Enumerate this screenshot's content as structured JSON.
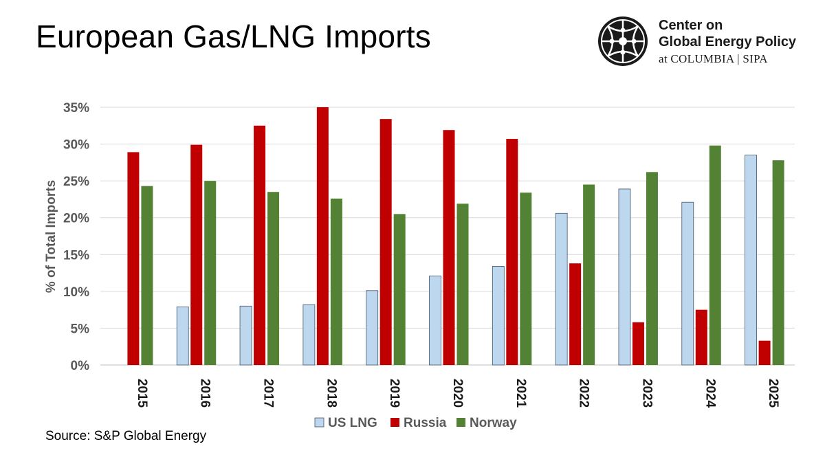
{
  "title": "European Gas/LNG Imports",
  "logo": {
    "line1": "Center on",
    "line2": "Global Energy Policy",
    "line3": "at COLUMBIA | SIPA"
  },
  "source": "Source: S&P Global Energy",
  "colors": {
    "us_lng": "#bdd7ee",
    "russia": "#c00000",
    "norway": "#548235",
    "axis_text": "#595959",
    "grid": "#d9d9d9"
  },
  "chart_data": {
    "type": "bar",
    "title": "",
    "xlabel": "",
    "ylabel": "% of Total Imports",
    "ylim": [
      0,
      35
    ],
    "ytick_step": 5,
    "ytick_suffix": "%",
    "grid": true,
    "legend_position": "bottom",
    "categories": [
      "2015",
      "2016",
      "2017",
      "2018",
      "2019",
      "2020",
      "2021",
      "2022",
      "2023",
      "2024",
      "2025"
    ],
    "series": [
      {
        "name": "US LNG",
        "color": "#bdd7ee",
        "values": [
          0,
          7.9,
          8.0,
          8.2,
          10.1,
          12.1,
          13.4,
          20.6,
          23.9,
          22.1,
          28.5
        ]
      },
      {
        "name": "Russia",
        "color": "#c00000",
        "values": [
          28.9,
          29.9,
          32.5,
          35.0,
          33.4,
          31.9,
          30.7,
          13.8,
          5.8,
          7.5,
          3.3
        ]
      },
      {
        "name": "Norway",
        "color": "#548235",
        "values": [
          24.3,
          25.0,
          23.5,
          22.6,
          20.5,
          21.9,
          23.4,
          24.5,
          26.2,
          29.8,
          27.8
        ]
      }
    ]
  }
}
